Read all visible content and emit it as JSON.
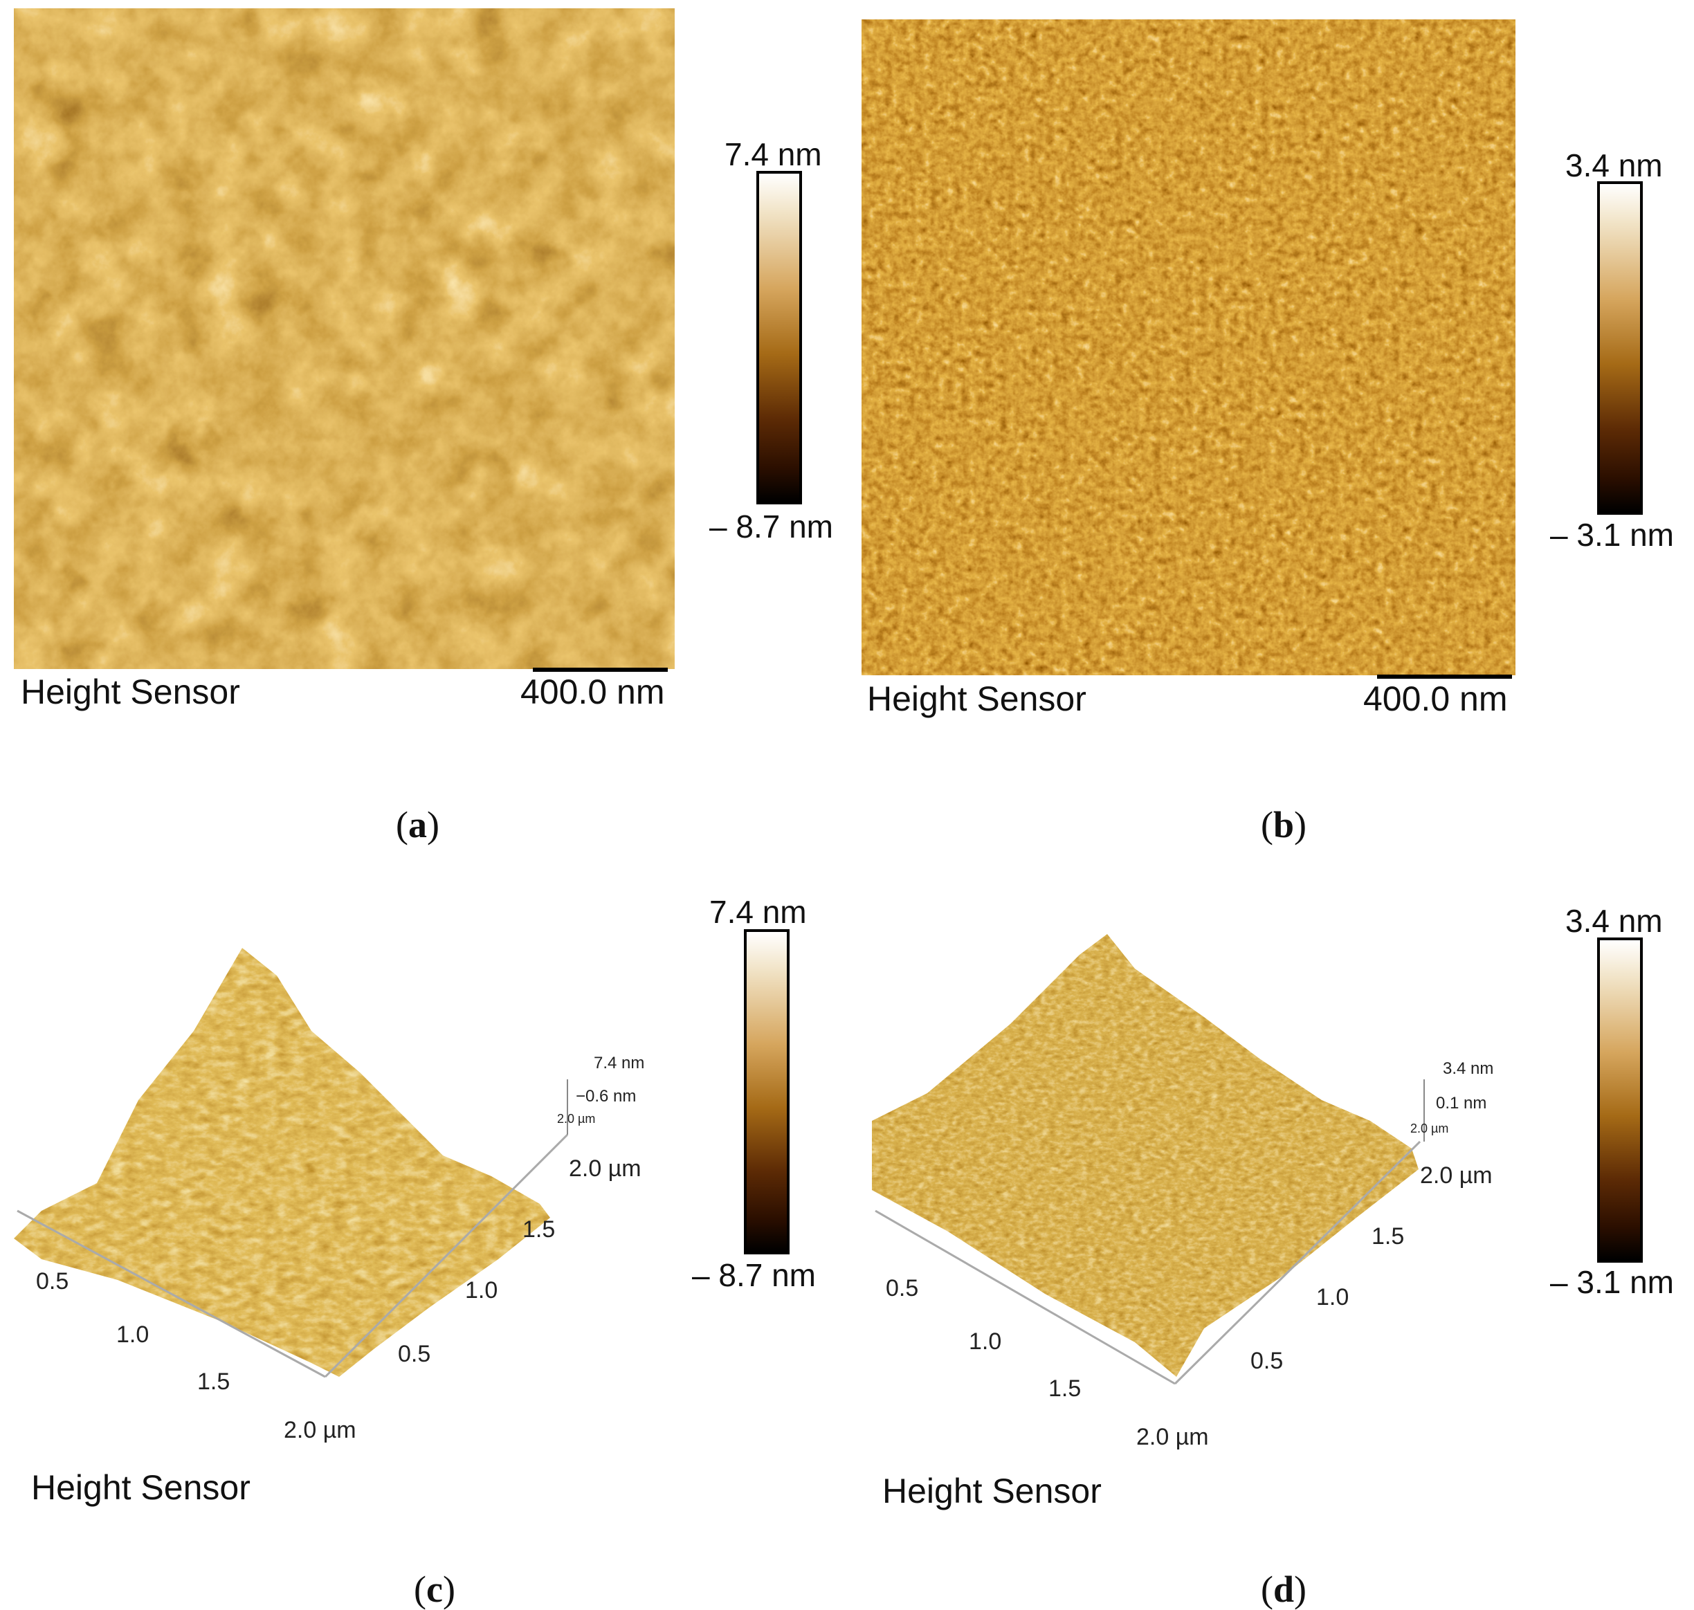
{
  "panels": {
    "a": {
      "caption_letter": "a",
      "sensor_label": "Height Sensor",
      "scale_bar_label": "400.0 nm",
      "colorbar_max": "7.4 nm",
      "colorbar_min": "– 8.7 nm"
    },
    "b": {
      "caption_letter": "b",
      "sensor_label": "Height Sensor",
      "scale_bar_label": "400.0 nm",
      "colorbar_max": "3.4 nm",
      "colorbar_min": "– 3.1 nm"
    },
    "c": {
      "caption_letter": "c",
      "sensor_label": "Height Sensor",
      "colorbar_max": "7.4 nm",
      "colorbar_min": "– 8.7 nm",
      "z_axis_top": "7.4 nm",
      "z_axis_mid": "−0.6  nm",
      "z_axis_small": "2.0 µm",
      "left_axis_ticks": [
        "0.5",
        "1.0",
        "1.5",
        "2.0 µm"
      ],
      "right_axis_ticks": [
        "0.5",
        "1.0",
        "1.5",
        "2.0 µm"
      ]
    },
    "d": {
      "caption_letter": "d",
      "sensor_label": "Height Sensor",
      "colorbar_max": "3.4 nm",
      "colorbar_min": "– 3.1 nm",
      "z_axis_top": "3.4 nm",
      "z_axis_mid": "0.1  nm",
      "z_axis_small": "2.0 µm",
      "left_axis_ticks": [
        "0.5",
        "1.0",
        "1.5",
        "2.0 µm"
      ],
      "right_axis_ticks": [
        "0.5",
        "1.0",
        "1.5",
        "2.0 µm"
      ]
    }
  },
  "colors": {
    "afm_light": "#f4dca8",
    "afm_mid": "#b5741c",
    "afm_dark": "#3a1600"
  }
}
